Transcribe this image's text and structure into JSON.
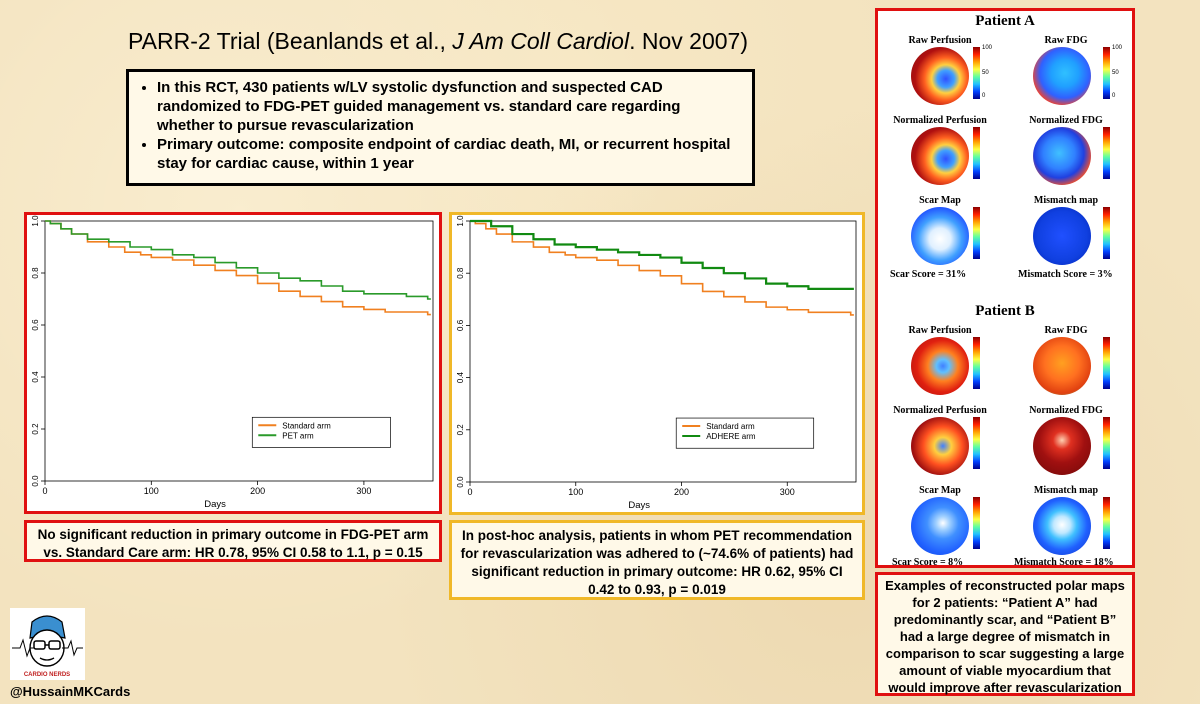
{
  "title": {
    "prefix": "PARR-2 Trial (Beanlands et al., ",
    "journal": "J Am Coll Cardiol",
    "suffix": ". Nov 2007)"
  },
  "summary": {
    "bullets": [
      "In this RCT, 430 patients w/LV systolic dysfunction and suspected CAD randomized to FDG-PET guided management vs. standard care regarding whether to pursue revascularization",
      "Primary outcome: composite endpoint of cardiac death, MI, or recurrent hospital stay for cardiac cause, within 1 year"
    ]
  },
  "chart_data": [
    {
      "type": "line",
      "xlabel": "Days",
      "ylabel": "",
      "xlim": [
        0,
        365
      ],
      "ylim": [
        0,
        1.0
      ],
      "x_ticks": [
        0,
        100,
        200,
        300
      ],
      "y_ticks": [
        0.0,
        0.2,
        0.4,
        0.6,
        0.8,
        1.0
      ],
      "legend_position": "lower-right",
      "series": [
        {
          "name": "Standard arm",
          "color": "#f08020",
          "x": [
            0,
            5,
            15,
            25,
            40,
            60,
            75,
            90,
            100,
            120,
            140,
            160,
            180,
            200,
            220,
            240,
            260,
            280,
            300,
            320,
            340,
            360
          ],
          "y": [
            1.0,
            0.99,
            0.97,
            0.95,
            0.92,
            0.9,
            0.88,
            0.87,
            0.86,
            0.85,
            0.83,
            0.81,
            0.79,
            0.76,
            0.73,
            0.71,
            0.69,
            0.67,
            0.66,
            0.65,
            0.65,
            0.64
          ]
        },
        {
          "name": "PET arm",
          "color": "#2a9a2a",
          "x": [
            0,
            5,
            15,
            25,
            40,
            60,
            80,
            100,
            120,
            140,
            160,
            180,
            200,
            220,
            240,
            260,
            280,
            300,
            320,
            340,
            360
          ],
          "y": [
            1.0,
            0.99,
            0.97,
            0.95,
            0.93,
            0.92,
            0.9,
            0.89,
            0.87,
            0.86,
            0.84,
            0.82,
            0.8,
            0.78,
            0.77,
            0.75,
            0.73,
            0.72,
            0.72,
            0.71,
            0.7
          ]
        }
      ]
    },
    {
      "type": "line",
      "xlabel": "Days",
      "ylabel": "",
      "xlim": [
        0,
        365
      ],
      "ylim": [
        0,
        1.0
      ],
      "x_ticks": [
        0,
        100,
        200,
        300
      ],
      "y_ticks": [
        0.0,
        0.2,
        0.4,
        0.6,
        0.8,
        1.0
      ],
      "legend_position": "lower-right",
      "series": [
        {
          "name": "Standard arm",
          "color": "#f08020",
          "x": [
            0,
            5,
            15,
            25,
            40,
            60,
            75,
            90,
            100,
            120,
            140,
            160,
            180,
            200,
            220,
            240,
            260,
            280,
            300,
            320,
            340,
            360
          ],
          "y": [
            1.0,
            0.99,
            0.97,
            0.95,
            0.92,
            0.9,
            0.88,
            0.87,
            0.86,
            0.85,
            0.83,
            0.81,
            0.79,
            0.76,
            0.73,
            0.71,
            0.69,
            0.67,
            0.66,
            0.65,
            0.65,
            0.64
          ]
        },
        {
          "name": "ADHERE arm",
          "color": "#118a11",
          "x": [
            0,
            10,
            20,
            40,
            60,
            80,
            100,
            120,
            140,
            160,
            180,
            200,
            220,
            240,
            260,
            280,
            300,
            320,
            340,
            360
          ],
          "y": [
            1.0,
            1.0,
            0.98,
            0.95,
            0.93,
            0.91,
            0.9,
            0.89,
            0.88,
            0.87,
            0.86,
            0.84,
            0.82,
            0.8,
            0.78,
            0.76,
            0.75,
            0.74,
            0.74,
            0.74
          ]
        }
      ]
    }
  ],
  "caption1": "No significant reduction in primary outcome in FDG-PET arm vs. Standard Care arm: HR 0.78, 95% CI 0.58 to 1.1, p = 0.15",
  "caption2": "In post-hoc analysis, patients in whom PET recommendation for revascularization was adhered to (~74.6% of patients) had significant reduction in primary outcome: HR 0.62, 95% CI 0.42 to 0.93, p = 0.019",
  "polar_maps": {
    "patient_a": {
      "title": "Patient A",
      "labels": [
        "Raw Perfusion",
        "Raw FDG",
        "Normalized Perfusion",
        "Normalized FDG",
        "Scar Map",
        "Mismatch map"
      ],
      "scores": [
        "Scar Score = 31%",
        "Mismatch Score = 3%"
      ]
    },
    "patient_b": {
      "title": "Patient B",
      "labels": [
        "Raw Perfusion",
        "Raw FDG",
        "Normalized Perfusion",
        "Normalized FDG",
        "Scar Map",
        "Mismatch map"
      ],
      "scores": [
        "Scar Score = 8%",
        "Mismatch Score = 18%"
      ]
    },
    "colorbar_ticks": [
      "100",
      "50",
      "0"
    ]
  },
  "caption3": "Examples of reconstructed polar maps for 2 patients: “Patient A” had predominantly scar, and “Patient B” had a large degree of mismatch in comparison to scar suggesting a large amount of viable myocardium that would improve after revascularization",
  "logo_text": "CARDIO NERDS",
  "handle": "@HussainMKCards"
}
